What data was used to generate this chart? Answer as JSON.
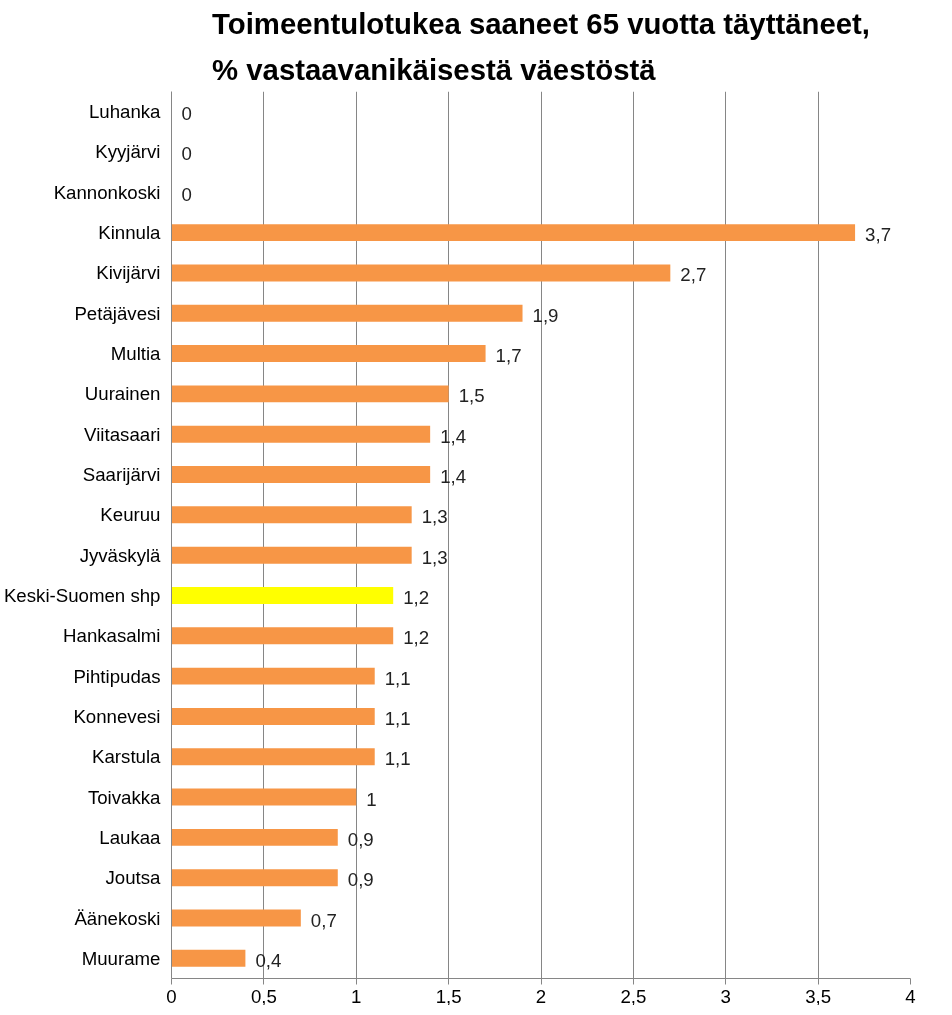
{
  "chart_data": {
    "type": "bar",
    "orientation": "horizontal",
    "title": "Toimeentulotukea saaneet 65 vuotta täyttäneet,\n% vastaavanikäisestä väestöstä",
    "categories": [
      "Luhanka",
      "Kyyjärvi",
      "Kannonkoski",
      "Kinnula",
      "Kivijärvi",
      "Petäjävesi",
      "Multia",
      "Uurainen",
      "Viitasaari",
      "Saarijärvi",
      "Keuruu",
      "Jyväskylä",
      "Keski-Suomen shp",
      "Hankasalmi",
      "Pihtipudas",
      "Konnevesi",
      "Karstula",
      "Toivakka",
      "Laukaa",
      "Joutsa",
      "Äänekoski",
      "Muurame"
    ],
    "values": [
      0,
      0,
      0,
      3.7,
      2.7,
      1.9,
      1.7,
      1.5,
      1.4,
      1.4,
      1.3,
      1.3,
      1.2,
      1.2,
      1.1,
      1.1,
      1.1,
      1,
      0.9,
      0.9,
      0.7,
      0.4
    ],
    "value_labels": [
      "0",
      "0",
      "0",
      "3,7",
      "2,7",
      "1,9",
      "1,7",
      "1,5",
      "1,4",
      "1,4",
      "1,3",
      "1,3",
      "1,2",
      "1,2",
      "1,1",
      "1,1",
      "1,1",
      "1",
      "0,9",
      "0,9",
      "0,7",
      "0,4"
    ],
    "colors": [
      "#f79646",
      "#f79646",
      "#f79646",
      "#f79646",
      "#f79646",
      "#f79646",
      "#f79646",
      "#f79646",
      "#f79646",
      "#f79646",
      "#f79646",
      "#f79646",
      "#ffff00",
      "#f79646",
      "#f79646",
      "#f79646",
      "#f79646",
      "#f79646",
      "#f79646",
      "#f79646",
      "#f79646",
      "#f79646"
    ],
    "xlim": [
      0,
      4
    ],
    "xticks": [
      0,
      {
        "value": 0.5,
        "label": "0,5"
      },
      1,
      {
        "value": 1.5,
        "label": "1,5"
      },
      2,
      {
        "value": 2.5,
        "label": "2,5"
      },
      3,
      {
        "value": 3.5,
        "label": "3,5"
      },
      4
    ],
    "grid": "x"
  }
}
